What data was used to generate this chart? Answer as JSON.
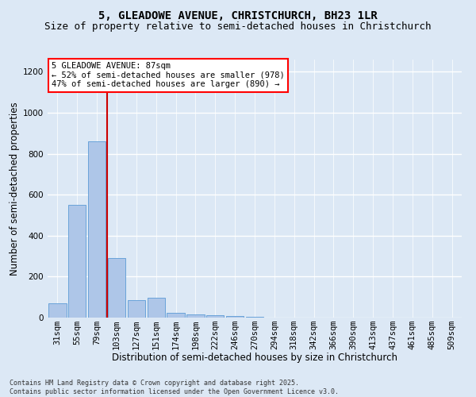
{
  "title_line1": "5, GLEADOWE AVENUE, CHRISTCHURCH, BH23 1LR",
  "title_line2": "Size of property relative to semi-detached houses in Christchurch",
  "xlabel": "Distribution of semi-detached houses by size in Christchurch",
  "ylabel": "Number of semi-detached properties",
  "footnote": "Contains HM Land Registry data © Crown copyright and database right 2025.\nContains public sector information licensed under the Open Government Licence v3.0.",
  "categories": [
    "31sqm",
    "55sqm",
    "79sqm",
    "103sqm",
    "127sqm",
    "151sqm",
    "174sqm",
    "198sqm",
    "222sqm",
    "246sqm",
    "270sqm",
    "294sqm",
    "318sqm",
    "342sqm",
    "366sqm",
    "390sqm",
    "413sqm",
    "437sqm",
    "461sqm",
    "485sqm",
    "509sqm"
  ],
  "values": [
    70,
    550,
    860,
    290,
    85,
    95,
    25,
    15,
    10,
    8,
    5,
    0,
    0,
    0,
    0,
    0,
    0,
    0,
    0,
    0,
    0
  ],
  "bar_color": "#aec6e8",
  "bar_edgecolor": "#5b9bd5",
  "vline_color": "#cc0000",
  "vline_pos": 2.5,
  "annotation_box_text": "5 GLEADOWE AVENUE: 87sqm\n← 52% of semi-detached houses are smaller (978)\n47% of semi-detached houses are larger (890) →",
  "ylim": [
    0,
    1260
  ],
  "yticks": [
    0,
    200,
    400,
    600,
    800,
    1000,
    1200
  ],
  "background_color": "#dce8f5",
  "grid_color": "#ffffff",
  "title_fontsize": 10,
  "subtitle_fontsize": 9,
  "axis_label_fontsize": 8.5,
  "tick_fontsize": 7.5,
  "annot_fontsize": 7.5
}
